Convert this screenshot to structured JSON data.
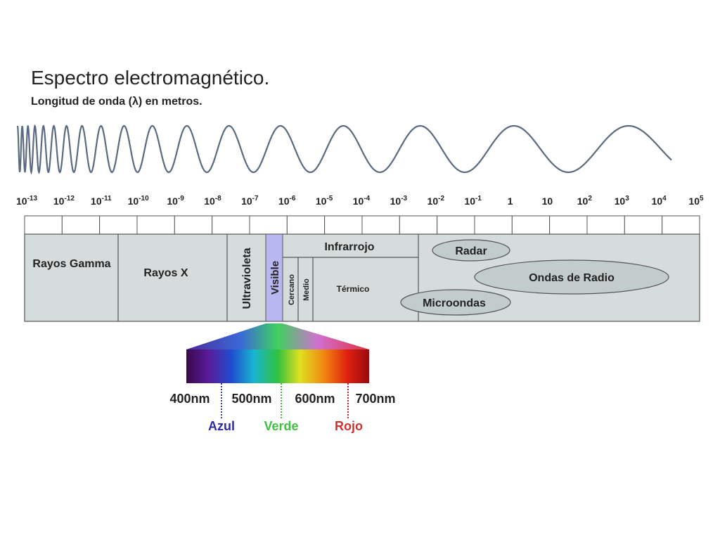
{
  "header": {
    "title": "Espectro electromagnético.",
    "subtitle": "Longitud de onda (λ) en metros."
  },
  "scale": [
    {
      "base": "10",
      "exp": "-13"
    },
    {
      "base": "10",
      "exp": "-12"
    },
    {
      "base": "10",
      "exp": "-11"
    },
    {
      "base": "10",
      "exp": "-10"
    },
    {
      "base": "10",
      "exp": "-9"
    },
    {
      "base": "10",
      "exp": "-8"
    },
    {
      "base": "10",
      "exp": "-7"
    },
    {
      "base": "10",
      "exp": "-6"
    },
    {
      "base": "10",
      "exp": "-5"
    },
    {
      "base": "10",
      "exp": "-4"
    },
    {
      "base": "10",
      "exp": "-3"
    },
    {
      "base": "10",
      "exp": "-2"
    },
    {
      "base": "10",
      "exp": "-1"
    },
    {
      "base": "1"
    },
    {
      "base": "10"
    },
    {
      "base": "10",
      "exp": "2"
    },
    {
      "base": "10",
      "exp": "3"
    },
    {
      "base": "10",
      "exp": "4"
    },
    {
      "base": "10",
      "exp": "5"
    }
  ],
  "regions": {
    "gamma": "Rayos Gamma",
    "xray": "Rayos X",
    "uv": "Ultravioleta",
    "visible": "Visible",
    "infrared": "Infrarrojo",
    "near": "Cercano",
    "mid": "Medio",
    "thermal": "Térmico",
    "radar": "Radar",
    "radio": "Ondas de Radio",
    "micro": "Microondas"
  },
  "visible_spectrum": {
    "wavelengths": [
      "400nm",
      "500nm",
      "600nm",
      "700nm"
    ],
    "colors": {
      "blue": "Azul",
      "green": "Verde",
      "red": "Rojo"
    }
  }
}
